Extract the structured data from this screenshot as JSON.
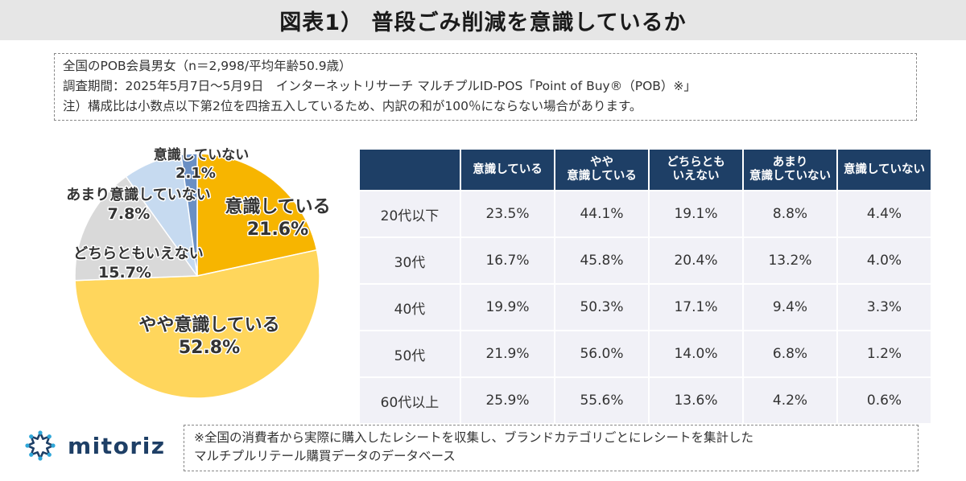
{
  "title": "図表1） 普段ごみ削減を意識しているか",
  "notes": [
    "全国のPOB会員男女（n＝2,998/平均年齢50.9歳）",
    "調査期間：2025年5月7日～5月9日　インターネットリサーチ マルチプルID-POS「Point of Buy®（POB）※」",
    "注）構成比は小数点以下第2位を四捨五入しているため、内訳の和が100％にならない場合があります。"
  ],
  "chart_data": [
    {
      "type": "pie",
      "title": "",
      "slices": [
        {
          "label": "意識している",
          "value": 21.6,
          "value_label": "21.6%",
          "color": "#f7b500"
        },
        {
          "label": "やや意識している",
          "value": 52.8,
          "value_label": "52.8%",
          "color": "#ffd65c"
        },
        {
          "label": "どちらともいえない",
          "value": 15.7,
          "value_label": "15.7%",
          "color": "#d9d9d9"
        },
        {
          "label": "あまり意識していない",
          "value": 7.8,
          "value_label": "7.8%",
          "color": "#c6daf0"
        },
        {
          "label": "意識していない",
          "value": 2.1,
          "value_label": "2.1%",
          "color": "#6a8fc4"
        }
      ]
    },
    {
      "type": "table",
      "columns": [
        "",
        "意識している",
        "やや\n意識している",
        "どちらとも\nいえない",
        "あまり\n意識していない",
        "意識していない"
      ],
      "rows": [
        {
          "label": "20代以下",
          "values": [
            "23.5%",
            "44.1%",
            "19.1%",
            "8.8%",
            "4.4%"
          ]
        },
        {
          "label": "30代",
          "values": [
            "16.7%",
            "45.8%",
            "20.4%",
            "13.2%",
            "4.0%"
          ]
        },
        {
          "label": "40代",
          "values": [
            "19.9%",
            "50.3%",
            "17.1%",
            "9.4%",
            "3.3%"
          ]
        },
        {
          "label": "50代",
          "values": [
            "21.9%",
            "56.0%",
            "14.0%",
            "6.8%",
            "1.2%"
          ]
        },
        {
          "label": "60代以上",
          "values": [
            "25.9%",
            "55.6%",
            "13.6%",
            "4.2%",
            "0.6%"
          ]
        }
      ]
    }
  ],
  "logo": {
    "text": "mitoriz",
    "color": "#1e3f66",
    "dot_color": "#2fa7d9"
  },
  "footnote": [
    "※全国の消費者から実際に購入したレシートを収集し、ブランドカテゴリごとにレシートを集計した",
    "マルチプルリテール購買データのデータベース"
  ]
}
